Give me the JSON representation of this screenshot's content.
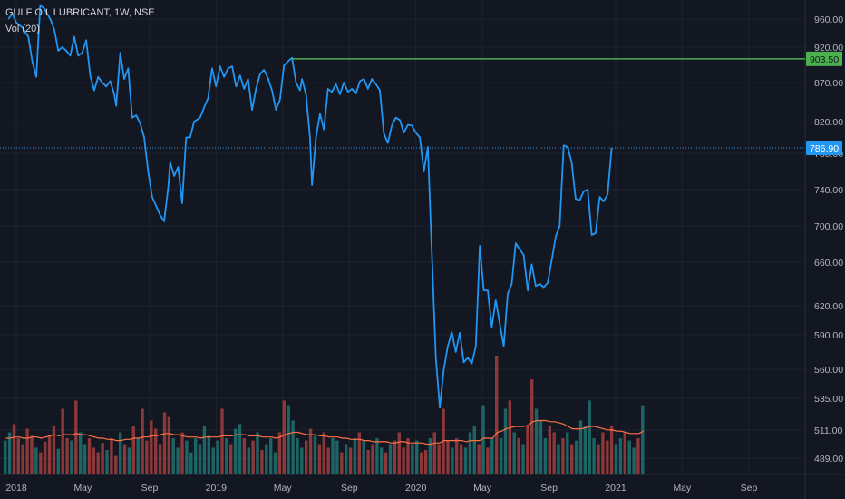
{
  "header": {
    "symbol_line": "GULF OIL LUBRICANT, 1W, NSE",
    "volume_line": "Vol (20)"
  },
  "chart_data": {
    "type": "line",
    "title": "GULF OIL LUBRICANT, 1W, NSE",
    "grid": true,
    "y_axis_side": "right",
    "y_ticks": [
      "960.00",
      "920.00",
      "870.00",
      "820.00",
      "780.00",
      "740.00",
      "700.00",
      "660.00",
      "620.00",
      "590.00",
      "560.00",
      "535.00",
      "511.00",
      "489.00"
    ],
    "x_ticks": [
      {
        "label": "2018",
        "t": 2018.0
      },
      {
        "label": "May",
        "t": 2018.333
      },
      {
        "label": "Sep",
        "t": 2018.667
      },
      {
        "label": "2019",
        "t": 2019.0
      },
      {
        "label": "May",
        "t": 2019.333
      },
      {
        "label": "Sep",
        "t": 2019.667
      },
      {
        "label": "2020",
        "t": 2020.0
      },
      {
        "label": "May",
        "t": 2020.333
      },
      {
        "label": "Sep",
        "t": 2020.667
      },
      {
        "label": "2021",
        "t": 2021.0
      },
      {
        "label": "May",
        "t": 2021.333
      },
      {
        "label": "Sep",
        "t": 2021.667
      }
    ],
    "price_series": {
      "color": "#2196f3",
      "points": [
        [
          2017.96,
          960
        ],
        [
          2017.98,
          968
        ],
        [
          2018.0,
          955
        ],
        [
          2018.03,
          948
        ],
        [
          2018.06,
          935
        ],
        [
          2018.08,
          900
        ],
        [
          2018.1,
          878
        ],
        [
          2018.12,
          980
        ],
        [
          2018.14,
          975
        ],
        [
          2018.17,
          960
        ],
        [
          2018.19,
          945
        ],
        [
          2018.21,
          915
        ],
        [
          2018.23,
          920
        ],
        [
          2018.25,
          915
        ],
        [
          2018.27,
          908
        ],
        [
          2018.29,
          935
        ],
        [
          2018.31,
          908
        ],
        [
          2018.33,
          912
        ],
        [
          2018.35,
          930
        ],
        [
          2018.37,
          880
        ],
        [
          2018.39,
          860
        ],
        [
          2018.41,
          878
        ],
        [
          2018.43,
          870
        ],
        [
          2018.45,
          865
        ],
        [
          2018.47,
          872
        ],
        [
          2018.49,
          855
        ],
        [
          2018.5,
          840
        ],
        [
          2018.52,
          912
        ],
        [
          2018.54,
          875
        ],
        [
          2018.56,
          890
        ],
        [
          2018.58,
          825
        ],
        [
          2018.6,
          828
        ],
        [
          2018.62,
          818
        ],
        [
          2018.64,
          800
        ],
        [
          2018.66,
          760
        ],
        [
          2018.68,
          732
        ],
        [
          2018.7,
          722
        ],
        [
          2018.72,
          712
        ],
        [
          2018.74,
          705
        ],
        [
          2018.76,
          742
        ],
        [
          2018.77,
          770
        ],
        [
          2018.79,
          755
        ],
        [
          2018.81,
          765
        ],
        [
          2018.83,
          725
        ],
        [
          2018.85,
          800
        ],
        [
          2018.87,
          800
        ],
        [
          2018.89,
          820
        ],
        [
          2018.92,
          825
        ],
        [
          2018.94,
          838
        ],
        [
          2018.96,
          850
        ],
        [
          2018.98,
          890
        ],
        [
          2019.0,
          865
        ],
        [
          2019.02,
          893
        ],
        [
          2019.04,
          878
        ],
        [
          2019.06,
          890
        ],
        [
          2019.08,
          893
        ],
        [
          2019.1,
          865
        ],
        [
          2019.12,
          880
        ],
        [
          2019.14,
          862
        ],
        [
          2019.16,
          875
        ],
        [
          2019.18,
          835
        ],
        [
          2019.2,
          862
        ],
        [
          2019.22,
          882
        ],
        [
          2019.24,
          888
        ],
        [
          2019.26,
          876
        ],
        [
          2019.28,
          860
        ],
        [
          2019.3,
          835
        ],
        [
          2019.32,
          848
        ],
        [
          2019.34,
          894
        ],
        [
          2019.36,
          900
        ],
        [
          2019.38,
          905
        ],
        [
          2019.4,
          870
        ],
        [
          2019.42,
          860
        ],
        [
          2019.43,
          875
        ],
        [
          2019.45,
          855
        ],
        [
          2019.47,
          800
        ],
        [
          2019.48,
          745
        ],
        [
          2019.5,
          800
        ],
        [
          2019.52,
          830
        ],
        [
          2019.54,
          810
        ],
        [
          2019.56,
          862
        ],
        [
          2019.58,
          858
        ],
        [
          2019.6,
          868
        ],
        [
          2019.62,
          855
        ],
        [
          2019.64,
          870
        ],
        [
          2019.66,
          858
        ],
        [
          2019.68,
          862
        ],
        [
          2019.7,
          856
        ],
        [
          2019.72,
          872
        ],
        [
          2019.74,
          875
        ],
        [
          2019.76,
          862
        ],
        [
          2019.78,
          875
        ],
        [
          2019.8,
          868
        ],
        [
          2019.82,
          860
        ],
        [
          2019.84,
          805
        ],
        [
          2019.86,
          793
        ],
        [
          2019.88,
          815
        ],
        [
          2019.9,
          825
        ],
        [
          2019.92,
          822
        ],
        [
          2019.94,
          806
        ],
        [
          2019.96,
          816
        ],
        [
          2019.98,
          815
        ],
        [
          2020.0,
          806
        ],
        [
          2020.02,
          800
        ],
        [
          2020.04,
          760
        ],
        [
          2020.06,
          788
        ],
        [
          2020.08,
          670
        ],
        [
          2020.1,
          570
        ],
        [
          2020.12,
          528
        ],
        [
          2020.14,
          560
        ],
        [
          2020.16,
          580
        ],
        [
          2020.18,
          593
        ],
        [
          2020.2,
          575
        ],
        [
          2020.22,
          592
        ],
        [
          2020.24,
          566
        ],
        [
          2020.26,
          570
        ],
        [
          2020.28,
          565
        ],
        [
          2020.3,
          580
        ],
        [
          2020.32,
          678
        ],
        [
          2020.34,
          634
        ],
        [
          2020.36,
          634
        ],
        [
          2020.38,
          598
        ],
        [
          2020.4,
          625
        ],
        [
          2020.42,
          602
        ],
        [
          2020.44,
          580
        ],
        [
          2020.46,
          631
        ],
        [
          2020.48,
          640
        ],
        [
          2020.5,
          681
        ],
        [
          2020.52,
          674
        ],
        [
          2020.54,
          668
        ],
        [
          2020.56,
          634
        ],
        [
          2020.58,
          658
        ],
        [
          2020.6,
          638
        ],
        [
          2020.62,
          640
        ],
        [
          2020.64,
          637
        ],
        [
          2020.66,
          641
        ],
        [
          2020.68,
          662
        ],
        [
          2020.7,
          688
        ],
        [
          2020.72,
          700
        ],
        [
          2020.74,
          790
        ],
        [
          2020.76,
          788
        ],
        [
          2020.78,
          770
        ],
        [
          2020.8,
          730
        ],
        [
          2020.82,
          728
        ],
        [
          2020.84,
          738
        ],
        [
          2020.86,
          740
        ],
        [
          2020.88,
          690
        ],
        [
          2020.9,
          692
        ],
        [
          2020.92,
          732
        ],
        [
          2020.94,
          727
        ],
        [
          2020.96,
          735
        ],
        [
          2020.98,
          786.9
        ]
      ]
    },
    "volume_series": {
      "up_color": "#26a69a",
      "down_color": "#ef5350",
      "ma_color": "#ff7043",
      "bars": [
        0.28,
        0.35,
        0.42,
        0.3,
        0.25,
        0.38,
        0.32,
        0.22,
        0.18,
        0.27,
        0.33,
        0.4,
        0.21,
        0.55,
        0.3,
        0.28,
        0.62,
        0.35,
        0.25,
        0.3,
        0.22,
        0.18,
        0.26,
        0.2,
        0.3,
        0.15,
        0.35,
        0.25,
        0.22,
        0.4,
        0.3,
        0.55,
        0.28,
        0.45,
        0.38,
        0.25,
        0.52,
        0.48,
        0.3,
        0.22,
        0.35,
        0.28,
        0.18,
        0.3,
        0.25,
        0.4,
        0.32,
        0.22,
        0.28,
        0.55,
        0.3,
        0.25,
        0.38,
        0.42,
        0.3,
        0.22,
        0.28,
        0.35,
        0.2,
        0.25,
        0.3,
        0.18,
        0.35,
        0.62,
        0.58,
        0.45,
        0.3,
        0.22,
        0.28,
        0.38,
        0.32,
        0.25,
        0.35,
        0.22,
        0.3,
        0.28,
        0.18,
        0.25,
        0.22,
        0.3,
        0.35,
        0.28,
        0.2,
        0.25,
        0.3,
        0.22,
        0.18,
        0.25,
        0.28,
        0.35,
        0.22,
        0.3,
        0.25,
        0.28,
        0.18,
        0.2,
        0.3,
        0.35,
        0.25,
        0.55,
        0.28,
        0.22,
        0.3,
        0.25,
        0.22,
        0.35,
        0.4,
        0.25,
        0.58,
        0.22,
        0.3,
        1.0,
        0.3,
        0.55,
        0.62,
        0.35,
        0.3,
        0.25,
        0.4,
        0.8,
        0.55,
        0.45,
        0.3,
        0.4,
        0.35,
        0.25,
        0.3,
        0.35,
        0.25,
        0.28,
        0.45,
        0.4,
        0.62,
        0.3,
        0.25,
        0.35,
        0.28,
        0.4,
        0.25,
        0.3,
        0.35,
        0.28,
        0.22,
        0.3,
        0.58
      ],
      "ma": [
        0.3,
        0.3,
        0.31,
        0.31,
        0.3,
        0.3,
        0.31,
        0.31,
        0.3,
        0.31,
        0.32,
        0.33,
        0.32,
        0.33,
        0.33,
        0.33,
        0.34,
        0.33,
        0.33,
        0.32,
        0.31,
        0.3,
        0.3,
        0.29,
        0.29,
        0.28,
        0.28,
        0.29,
        0.29,
        0.3,
        0.3,
        0.31,
        0.31,
        0.32,
        0.32,
        0.33,
        0.34,
        0.34,
        0.33,
        0.33,
        0.32,
        0.31,
        0.31,
        0.31,
        0.3,
        0.31,
        0.31,
        0.31,
        0.31,
        0.32,
        0.32,
        0.32,
        0.33,
        0.33,
        0.33,
        0.32,
        0.32,
        0.32,
        0.31,
        0.31,
        0.31,
        0.3,
        0.31,
        0.33,
        0.34,
        0.35,
        0.35,
        0.34,
        0.33,
        0.33,
        0.33,
        0.32,
        0.32,
        0.31,
        0.31,
        0.31,
        0.3,
        0.3,
        0.29,
        0.29,
        0.29,
        0.28,
        0.28,
        0.27,
        0.27,
        0.27,
        0.27,
        0.26,
        0.26,
        0.27,
        0.27,
        0.26,
        0.26,
        0.26,
        0.26,
        0.25,
        0.25,
        0.26,
        0.26,
        0.28,
        0.28,
        0.28,
        0.28,
        0.28,
        0.27,
        0.28,
        0.28,
        0.28,
        0.3,
        0.3,
        0.3,
        0.35,
        0.36,
        0.38,
        0.39,
        0.4,
        0.4,
        0.4,
        0.41,
        0.44,
        0.45,
        0.45,
        0.45,
        0.44,
        0.44,
        0.43,
        0.42,
        0.4,
        0.38,
        0.38,
        0.38,
        0.39,
        0.4,
        0.4,
        0.39,
        0.38,
        0.37,
        0.37,
        0.36,
        0.36,
        0.35,
        0.34,
        0.34,
        0.34,
        0.36
      ]
    },
    "annotations": [
      {
        "label": "903.50",
        "value": 903.5,
        "color": "#4caf50",
        "type": "horizontal-line"
      },
      {
        "label": "786.90",
        "value": 786.9,
        "color": "#2196f3",
        "type": "last-price"
      }
    ]
  }
}
